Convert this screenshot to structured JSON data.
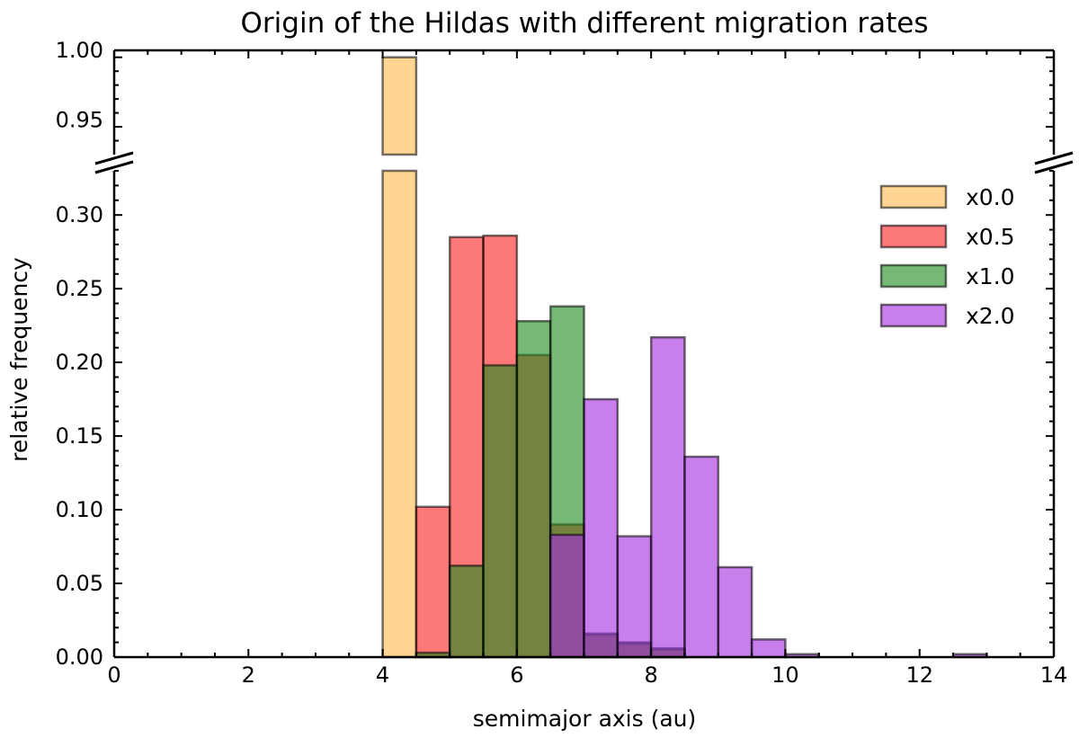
{
  "chart_data": {
    "type": "bar",
    "title": "Origin of the Hildas with different migration rates",
    "xlabel": "semimajor axis (au)",
    "ylabel": "relative frequency",
    "xlim": [
      0,
      14
    ],
    "ylim_lower": [
      0,
      0.33
    ],
    "ylim_upper": [
      0.925,
      1.0
    ],
    "broken_y_axis": true,
    "bin_width": 0.5,
    "xticks": [
      "0",
      "2",
      "4",
      "6",
      "8",
      "10",
      "12",
      "14"
    ],
    "yticks_lower": [
      "0.00",
      "0.05",
      "0.10",
      "0.15",
      "0.20",
      "0.25",
      "0.30"
    ],
    "yticks_upper": [
      "0.95",
      "1.00"
    ],
    "legend_position": "right",
    "series": [
      {
        "name": "x0.0",
        "color": "#fdb94a",
        "bin_starts": [
          4.0
        ],
        "values": [
          0.995
        ]
      },
      {
        "name": "x0.5",
        "color": "#fb1f1f",
        "bin_starts": [
          4.5,
          5.0,
          5.5,
          6.0,
          6.5,
          7.0,
          7.5,
          8.0
        ],
        "values": [
          0.102,
          0.285,
          0.286,
          0.205,
          0.09,
          0.015,
          0.009,
          0.005
        ]
      },
      {
        "name": "x1.0",
        "color": "#1b8a1b",
        "bin_starts": [
          4.5,
          5.0,
          5.5,
          6.0,
          6.5,
          7.0,
          7.5,
          8.0
        ],
        "values": [
          0.003,
          0.062,
          0.198,
          0.228,
          0.238,
          0.016,
          0.01,
          0.006
        ]
      },
      {
        "name": "x2.0",
        "color": "#a32ae0",
        "bin_starts": [
          6.5,
          7.0,
          7.5,
          8.0,
          8.5,
          9.0,
          9.5,
          10.0,
          12.5
        ],
        "values": [
          0.083,
          0.175,
          0.082,
          0.217,
          0.136,
          0.061,
          0.012,
          0.002,
          0.002
        ]
      }
    ]
  }
}
